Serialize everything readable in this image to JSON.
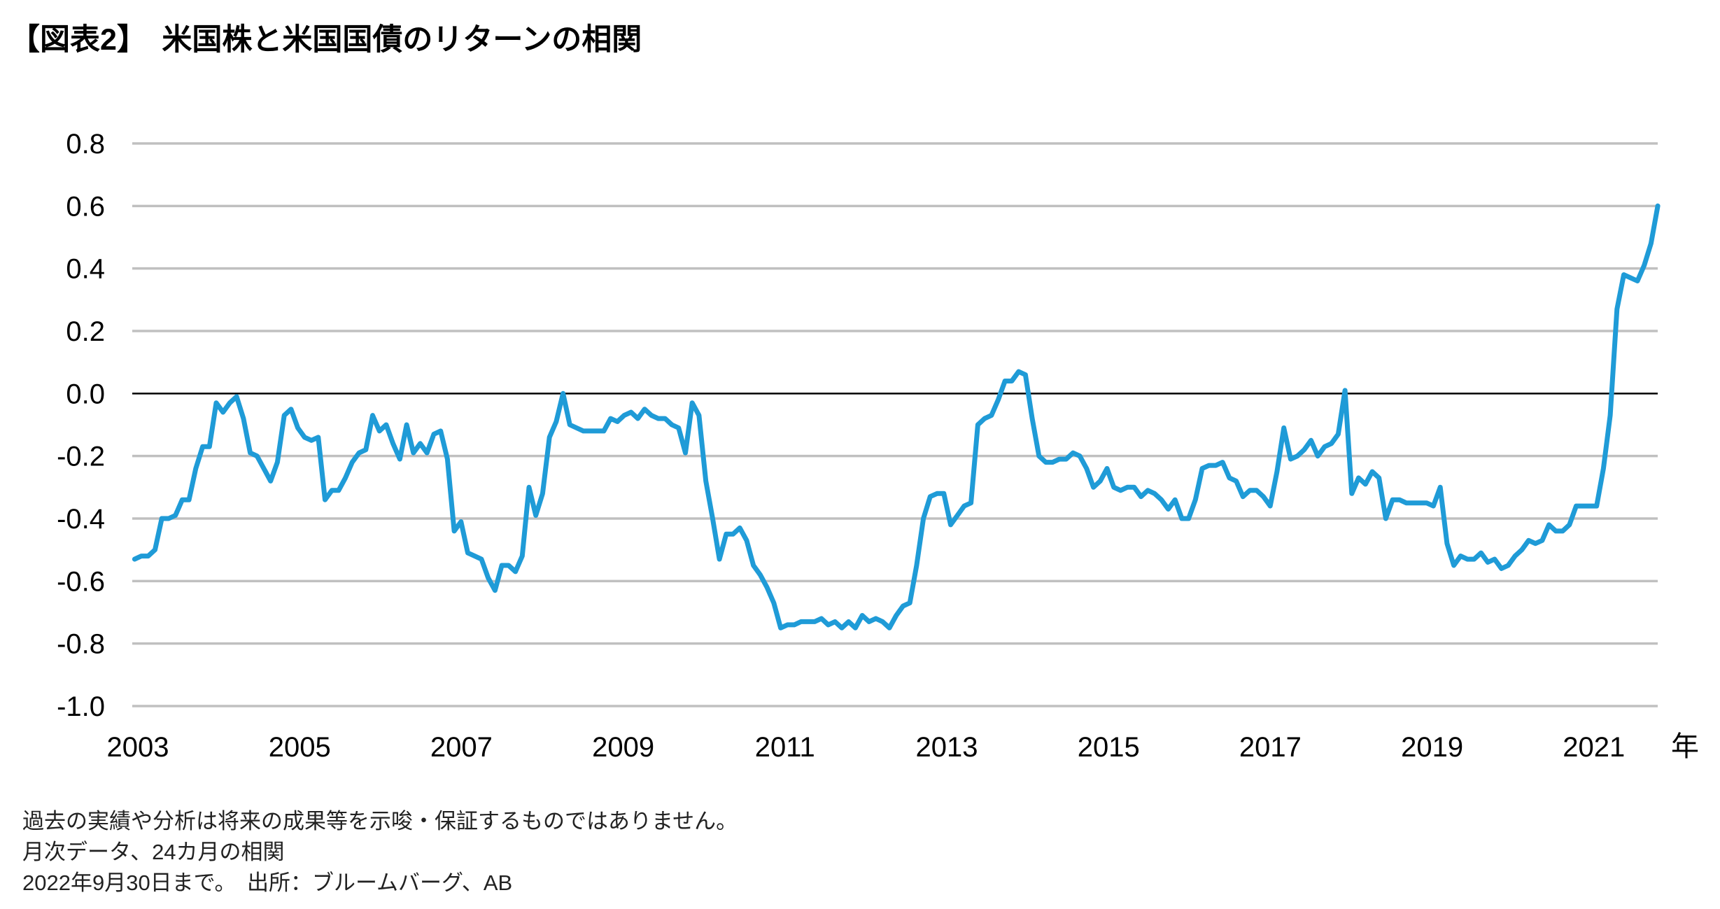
{
  "title": "【図表2】　米国株と米国国債のリターンの相関",
  "footnotes": [
    "過去の実績や分析は将来の成果等を示唆・保証するものではありません。",
    "月次データ、24カ月の相関",
    "2022年9月30日まで。　出所：ブルームバーグ、AB"
  ],
  "chart_data": {
    "type": "line",
    "title": "【図表2】　米国株と米国国債のリターンの相関",
    "xlabel": "年",
    "ylabel": "",
    "x_ticks": [
      "2003",
      "2005",
      "2007",
      "2009",
      "2011",
      "2013",
      "2015",
      "2017",
      "2019",
      "2021"
    ],
    "y_ticks": [
      "0.8",
      "0.6",
      "0.4",
      "0.2",
      "0.0",
      "-0.2",
      "-0.4",
      "-0.6",
      "-0.8",
      "-1.0"
    ],
    "ylim": [
      -1.0,
      0.8
    ],
    "xlim": [
      2003,
      2022.2
    ],
    "grid": true,
    "legend": "none",
    "colors": {
      "line": "#1f9bd7",
      "grid": "#c0c0c0",
      "zero_line": "#000000"
    },
    "series": [
      {
        "x_start": 2002.96,
        "x_end": 2021.79,
        "values": [
          -0.53,
          -0.52,
          -0.52,
          -0.5,
          -0.4,
          -0.4,
          -0.39,
          -0.34,
          -0.34,
          -0.24,
          -0.17,
          -0.17,
          -0.03,
          -0.06,
          -0.03,
          -0.01,
          -0.08,
          -0.19,
          -0.2,
          -0.24,
          -0.28,
          -0.22,
          -0.07,
          -0.05,
          -0.11,
          -0.14,
          -0.15,
          -0.14,
          -0.34,
          -0.31,
          -0.31,
          -0.27,
          -0.22,
          -0.19,
          -0.18,
          -0.07,
          -0.12,
          -0.1,
          -0.16,
          -0.21,
          -0.1,
          -0.19,
          -0.16,
          -0.19,
          -0.13,
          -0.12,
          -0.21,
          -0.44,
          -0.41,
          -0.51,
          -0.52,
          -0.53,
          -0.59,
          -0.63,
          -0.55,
          -0.55,
          -0.57,
          -0.52,
          -0.3,
          -0.39,
          -0.32,
          -0.14,
          -0.09,
          0.0,
          -0.1,
          -0.11,
          -0.12,
          -0.12,
          -0.12,
          -0.12,
          -0.08,
          -0.09,
          -0.07,
          -0.06,
          -0.08,
          -0.05,
          -0.07,
          -0.08,
          -0.08,
          -0.1,
          -0.11,
          -0.19,
          -0.03,
          -0.07,
          -0.28,
          -0.4,
          -0.53,
          -0.45,
          -0.45,
          -0.43,
          -0.47,
          -0.55,
          -0.58,
          -0.62,
          -0.67,
          -0.75,
          -0.74,
          -0.74,
          -0.73,
          -0.73,
          -0.73,
          -0.72,
          -0.74,
          -0.73,
          -0.75,
          -0.73,
          -0.75,
          -0.71,
          -0.73,
          -0.72,
          -0.73,
          -0.75,
          -0.71,
          -0.68,
          -0.67,
          -0.55,
          -0.4,
          -0.33,
          -0.32,
          -0.32,
          -0.42,
          -0.39,
          -0.36,
          -0.35,
          -0.1,
          -0.08,
          -0.07,
          -0.02,
          0.04,
          0.04,
          0.07,
          0.06,
          -0.08,
          -0.2,
          -0.22,
          -0.22,
          -0.21,
          -0.21,
          -0.19,
          -0.2,
          -0.24,
          -0.3,
          -0.28,
          -0.24,
          -0.3,
          -0.31,
          -0.3,
          -0.3,
          -0.33,
          -0.31,
          -0.32,
          -0.34,
          -0.37,
          -0.34,
          -0.4,
          -0.4,
          -0.34,
          -0.24,
          -0.23,
          -0.23,
          -0.22,
          -0.27,
          -0.28,
          -0.33,
          -0.31,
          -0.31,
          -0.33,
          -0.36,
          -0.25,
          -0.11,
          -0.21,
          -0.2,
          -0.18,
          -0.15,
          -0.2,
          -0.17,
          -0.16,
          -0.13,
          0.01,
          -0.32,
          -0.27,
          -0.29,
          -0.25,
          -0.27,
          -0.4,
          -0.34,
          -0.34,
          -0.35,
          -0.35,
          -0.35,
          -0.35,
          -0.36,
          -0.3,
          -0.48,
          -0.55,
          -0.52,
          -0.53,
          -0.53,
          -0.51,
          -0.54,
          -0.53,
          -0.56,
          -0.55,
          -0.52,
          -0.5,
          -0.47,
          -0.48,
          -0.47,
          -0.42,
          -0.44,
          -0.44,
          -0.42,
          -0.36,
          -0.36,
          -0.36,
          -0.36,
          -0.24,
          -0.07,
          0.27,
          0.38,
          0.37,
          0.36,
          0.41,
          0.48,
          0.6
        ]
      }
    ]
  }
}
